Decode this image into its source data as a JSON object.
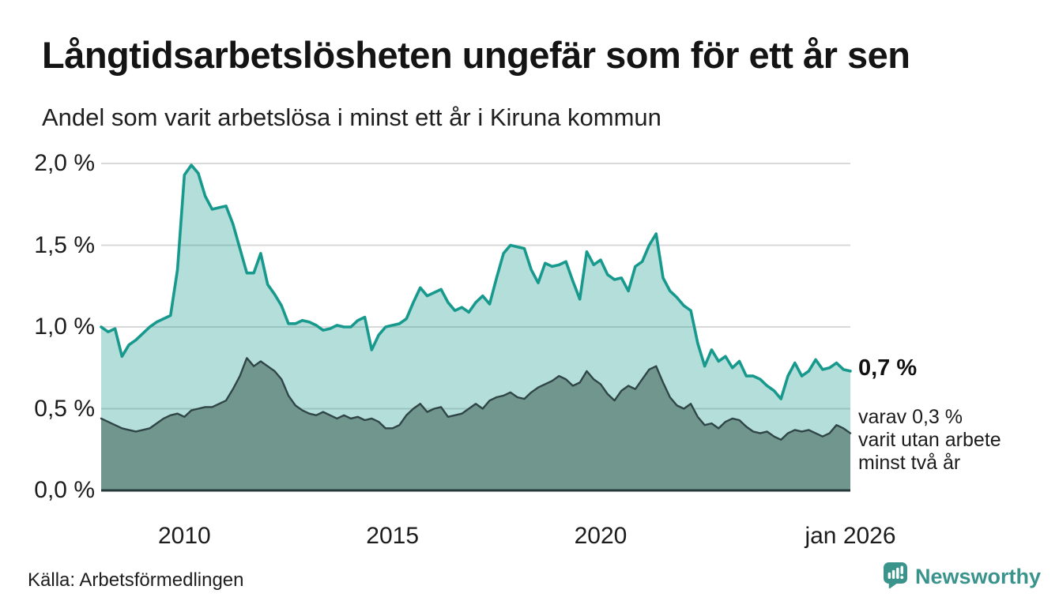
{
  "header": {
    "title": "Långtidsarbetslösheten ungefär som för ett år sen",
    "subtitle": "Andel som varit arbetslösa i minst ett år i Kiruna kommun"
  },
  "annotations": {
    "latest_value": "0,7 %",
    "secondary_lines": [
      "varav 0,3 %",
      "varit utan arbete",
      "minst två år"
    ]
  },
  "source": {
    "label": "Källa: Arbetsförmedlingen"
  },
  "branding": {
    "name": "Newsworthy",
    "color": "#3a948c",
    "icon": "speech-bubble-bar-chart-icon"
  },
  "chart_data": {
    "type": "area",
    "title": "Långtidsarbetslösheten ungefär som för ett år sen",
    "subtitle": "Andel som varit arbetslösa i minst ett år i Kiruna kommun",
    "xlabel": "",
    "ylabel": "",
    "unit": "%",
    "grid": true,
    "legend": "none",
    "x_start": 2008.0,
    "x_end": 2026.0,
    "x_step_years": 0.1666667,
    "xlim": [
      2008.0,
      2026.0
    ],
    "ylim": [
      0,
      2.05
    ],
    "x_ticks": [
      {
        "value": 2010,
        "label": "2010"
      },
      {
        "value": 2015,
        "label": "2015"
      },
      {
        "value": 2020,
        "label": "2020"
      },
      {
        "value": 2026,
        "label": "jan 2026"
      }
    ],
    "y_ticks": [
      {
        "value": 0.0,
        "label": "0,0 %"
      },
      {
        "value": 0.5,
        "label": "0,5 %"
      },
      {
        "value": 1.0,
        "label": "1,0 %"
      },
      {
        "value": 1.5,
        "label": "1,5 %"
      },
      {
        "value": 2.0,
        "label": "2,0 %"
      }
    ],
    "colors": {
      "line_primary": "#18998d",
      "fill_primary": "rgba(26,154,142,0.33)",
      "line_secondary": "#2f4547",
      "fill_secondary": "#71968e",
      "gridline": "#d9d9d9",
      "baseline": "#25383a"
    },
    "series": [
      {
        "name": "Andel som varit arbetslösa i minst ett år",
        "latest_label": "0,7 %",
        "values": [
          1.0,
          0.97,
          0.99,
          0.82,
          0.89,
          0.92,
          0.96,
          1.0,
          1.03,
          1.05,
          1.07,
          1.35,
          1.93,
          1.99,
          1.94,
          1.8,
          1.72,
          1.73,
          1.74,
          1.63,
          1.48,
          1.33,
          1.33,
          1.45,
          1.26,
          1.2,
          1.13,
          1.02,
          1.02,
          1.04,
          1.03,
          1.01,
          0.98,
          0.99,
          1.01,
          1.0,
          1.0,
          1.04,
          1.06,
          0.86,
          0.95,
          1.0,
          1.01,
          1.02,
          1.05,
          1.15,
          1.24,
          1.19,
          1.21,
          1.23,
          1.15,
          1.1,
          1.12,
          1.09,
          1.15,
          1.19,
          1.14,
          1.3,
          1.45,
          1.5,
          1.49,
          1.48,
          1.35,
          1.27,
          1.39,
          1.37,
          1.38,
          1.4,
          1.28,
          1.17,
          1.46,
          1.38,
          1.41,
          1.32,
          1.29,
          1.3,
          1.22,
          1.37,
          1.4,
          1.5,
          1.57,
          1.3,
          1.22,
          1.18,
          1.13,
          1.1,
          0.9,
          0.76,
          0.86,
          0.79,
          0.82,
          0.75,
          0.79,
          0.7,
          0.7,
          0.68,
          0.64,
          0.61,
          0.56,
          0.7,
          0.78,
          0.7,
          0.73,
          0.8,
          0.74,
          0.75,
          0.78,
          0.74,
          0.73
        ]
      },
      {
        "name": "varav utan arbete minst två år",
        "latest_label": "0,3 %",
        "values": [
          0.44,
          0.42,
          0.4,
          0.38,
          0.37,
          0.36,
          0.37,
          0.38,
          0.41,
          0.44,
          0.46,
          0.47,
          0.45,
          0.49,
          0.5,
          0.51,
          0.51,
          0.53,
          0.55,
          0.62,
          0.7,
          0.81,
          0.76,
          0.79,
          0.76,
          0.73,
          0.68,
          0.58,
          0.52,
          0.49,
          0.47,
          0.46,
          0.48,
          0.46,
          0.44,
          0.46,
          0.44,
          0.45,
          0.43,
          0.44,
          0.42,
          0.38,
          0.38,
          0.4,
          0.46,
          0.5,
          0.53,
          0.48,
          0.5,
          0.51,
          0.45,
          0.46,
          0.47,
          0.5,
          0.53,
          0.5,
          0.55,
          0.57,
          0.58,
          0.6,
          0.57,
          0.56,
          0.6,
          0.63,
          0.65,
          0.67,
          0.7,
          0.68,
          0.64,
          0.66,
          0.73,
          0.68,
          0.65,
          0.59,
          0.55,
          0.61,
          0.64,
          0.62,
          0.68,
          0.74,
          0.76,
          0.66,
          0.57,
          0.52,
          0.5,
          0.53,
          0.45,
          0.4,
          0.41,
          0.38,
          0.42,
          0.44,
          0.43,
          0.39,
          0.36,
          0.35,
          0.36,
          0.33,
          0.31,
          0.35,
          0.37,
          0.36,
          0.37,
          0.35,
          0.33,
          0.35,
          0.4,
          0.38,
          0.35
        ]
      }
    ]
  }
}
